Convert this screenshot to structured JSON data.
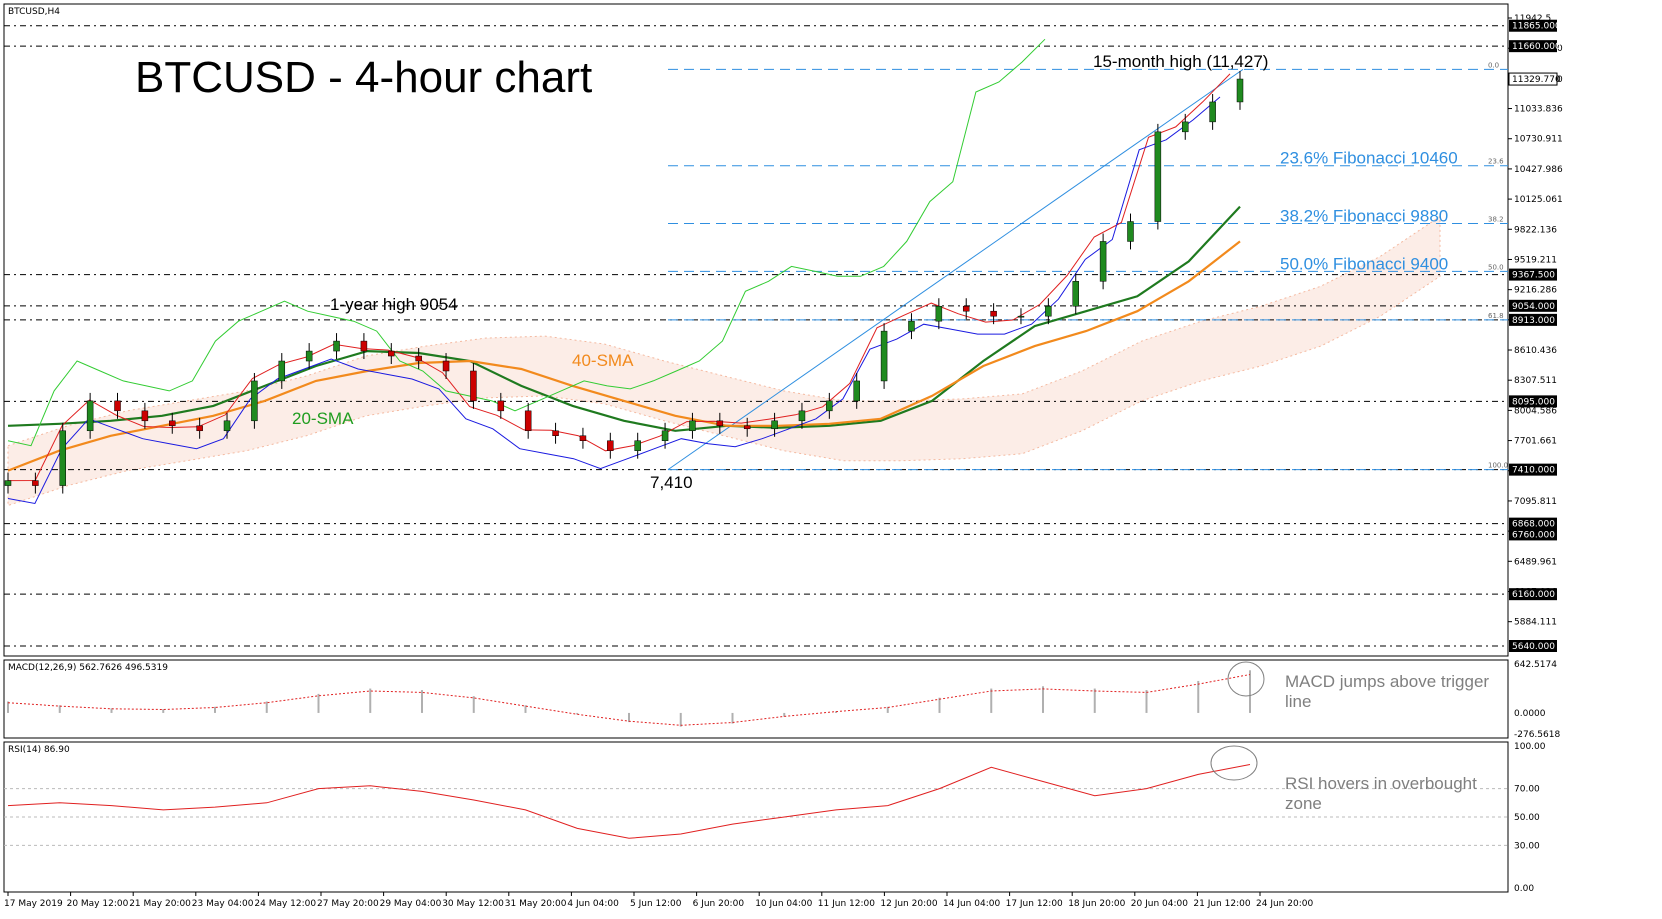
{
  "symbol_label": "BTCUSD,H4",
  "title": "BTCUSD - 4-hour chart",
  "annotations": {
    "high_label": "15-month high (11,427)",
    "year_high": "1-year high 9054",
    "low_label": "7,410",
    "sma20": "20-SMA",
    "sma40": "40-SMA",
    "macd_note_1": "MACD jumps above trigger",
    "macd_note_2": "line",
    "rsi_note_1": "RSI hovers in overbought",
    "rsi_note_2": "zone"
  },
  "fibonacci": [
    {
      "label": "23.6% Fibonacci 10460",
      "tag": "23.6",
      "value": 10460
    },
    {
      "label": "38.2% Fibonacci 9880",
      "tag": "38.2",
      "value": 9880
    },
    {
      "label": "50.0% Fibonacci 9400",
      "tag": "50.0",
      "value": 9400
    },
    {
      "label": "",
      "tag": "61.8",
      "value": 8913
    },
    {
      "label": "",
      "tag": "0.0",
      "value": 11427
    },
    {
      "label": "",
      "tag": "100.0",
      "value": 7410
    }
  ],
  "price_axis_ticks": [
    "11942.5",
    "11639.100",
    "11329.770",
    "11033.836",
    "10730.911",
    "10427.986",
    "10125.061",
    "9822.136",
    "9519.211",
    "9216.286",
    "8913.361",
    "8610.436",
    "8307.511",
    "8004.586",
    "7701.661",
    "7398.736",
    "7095.811",
    "6792.886",
    "6489.961",
    "6187.036",
    "5884.111"
  ],
  "price_tick_values": [
    11942.5,
    11639.1,
    11329.77,
    11033.836,
    10730.911,
    10427.986,
    10125.061,
    9822.136,
    9519.211,
    9216.286,
    8913.361,
    8610.436,
    8307.511,
    8004.586,
    7701.661,
    7398.736,
    7095.811,
    6792.886,
    6489.961,
    6187.036,
    5884.111
  ],
  "horizontal_levels": [
    {
      "value": 11865,
      "label": "11865.000"
    },
    {
      "value": 11660,
      "label": "11660.000"
    },
    {
      "value": 9367.5,
      "label": "9367.500"
    },
    {
      "value": 9054,
      "label": "9054.000"
    },
    {
      "value": 8913,
      "label": "8913.000"
    },
    {
      "value": 8095,
      "label": "8095.000"
    },
    {
      "value": 7410,
      "label": "7410.000"
    },
    {
      "value": 6868,
      "label": "6868.000"
    },
    {
      "value": 6760,
      "label": "6760.000"
    },
    {
      "value": 6160,
      "label": "6160.000"
    },
    {
      "value": 5640,
      "label": "5640.000"
    }
  ],
  "price_marker": {
    "value": 11329.77,
    "label": "11329.770"
  },
  "x_axis_labels": [
    "17 May 2019",
    "20 May 12:00",
    "21 May 20:00",
    "23 May 04:00",
    "24 May 12:00",
    "27 May 20:00",
    "29 May 04:00",
    "30 May 12:00",
    "31 May 20:00",
    "4 Jun 04:00",
    "5 Jun 12:00",
    "6 Jun 20:00",
    "10 Jun 04:00",
    "11 Jun 12:00",
    "12 Jun 20:00",
    "14 Jun 04:00",
    "17 Jun 12:00",
    "18 Jun 20:00",
    "20 Jun 04:00",
    "21 Jun 12:00",
    "24 Jun 20:00"
  ],
  "macd": {
    "label": "MACD(12,26,9) 562.7626 496.5319",
    "ticks": [
      "642.5174",
      "0.0000",
      "-276.5618"
    ],
    "tick_values": [
      642.5174,
      0,
      -276.5618
    ]
  },
  "rsi": {
    "label": "RSI(14) 86.90",
    "ticks": [
      "100.00",
      "70.00",
      "50.00",
      "30.00",
      "0.00"
    ],
    "tick_values": [
      100,
      70,
      50,
      30,
      0
    ]
  },
  "colors": {
    "candle": "#1f8a1f",
    "candle_down": "#cc0000",
    "tenkan": "#e02020",
    "kijun": "#1a1ae0",
    "chikou": "#33cc33",
    "sma20": "#1f7a1f",
    "sma40": "#f28a1d",
    "fib": "#2f8fe0",
    "cloud": "#f4b9a0"
  },
  "chart_data": {
    "type": "line",
    "title": "BTCUSD - 4-hour chart",
    "xlabel": "",
    "ylabel": "",
    "ylim": [
      5640,
      11942.5
    ],
    "series": [
      {
        "name": "20-SMA",
        "values": [
          7850,
          7870,
          7900,
          7950,
          8050,
          8250,
          8450,
          8600,
          8580,
          8500,
          8250,
          8050,
          7900,
          7800,
          7850,
          7830,
          7850,
          7900,
          8100,
          8500,
          8850,
          9000,
          9150,
          9500,
          10050
        ]
      },
      {
        "name": "40-SMA",
        "values": [
          7400,
          7600,
          7750,
          7850,
          7950,
          8100,
          8300,
          8400,
          8480,
          8500,
          8420,
          8250,
          8100,
          7950,
          7850,
          7850,
          7870,
          7920,
          8150,
          8450,
          8650,
          8800,
          9000,
          9300,
          9700
        ]
      }
    ],
    "candles": [
      7300,
      7250,
      7800,
      8100,
      8000,
      7900,
      7850,
      7800,
      7900,
      8300,
      8500,
      8600,
      8700,
      8600,
      8550,
      8500,
      8400,
      8100,
      8000,
      7800,
      7750,
      7700,
      7600,
      7700,
      7800,
      7900,
      7850,
      7820,
      7900,
      8000,
      8100,
      8300,
      8800,
      8900,
      9050,
      9000,
      8950,
      8950,
      9050,
      9300,
      9700,
      9900,
      10800,
      10900,
      11100,
      11330
    ],
    "macd_values": [
      150,
      100,
      60,
      50,
      80,
      150,
      250,
      320,
      300,
      220,
      100,
      -20,
      -120,
      -180,
      -140,
      -50,
      20,
      80,
      200,
      320,
      350,
      320,
      300,
      420,
      560
    ],
    "rsi_values": [
      58,
      60,
      58,
      55,
      57,
      60,
      70,
      72,
      68,
      62,
      55,
      42,
      35,
      38,
      45,
      50,
      55,
      58,
      70,
      85,
      75,
      65,
      70,
      80,
      87
    ]
  }
}
